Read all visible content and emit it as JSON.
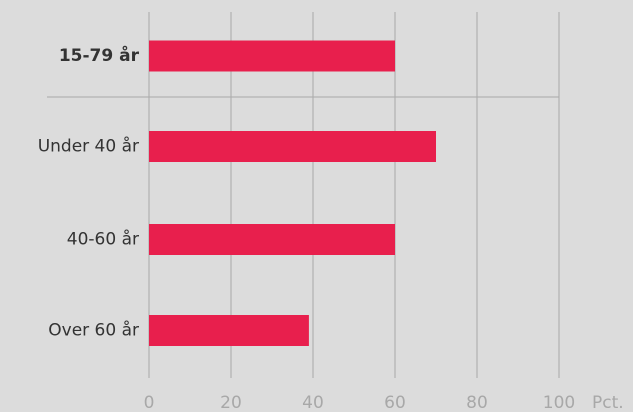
{
  "chart_data": {
    "type": "bar",
    "orientation": "horizontal",
    "categories": [
      "15-79 år",
      "Under 40 år",
      "40-60 år",
      "Over 60 år"
    ],
    "values": [
      60,
      70,
      60,
      39
    ],
    "color": "#e81f4d",
    "xlabel": "Pct.",
    "xlim": [
      0,
      100
    ],
    "xticks": [
      0,
      20,
      40,
      60,
      80,
      100
    ],
    "grid": true
  }
}
